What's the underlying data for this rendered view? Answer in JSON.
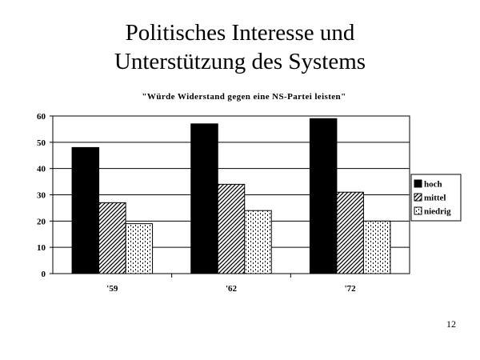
{
  "slide": {
    "title_line1": "Politisches Interesse und",
    "title_line2": "Unterstützung des Systems",
    "page_number": "12"
  },
  "chart_data": {
    "type": "bar",
    "title": "\"Würde Widerstand gegen eine NS-Partei leisten\"",
    "categories": [
      "'59",
      "'62",
      "'72"
    ],
    "series": [
      {
        "name": "hoch",
        "values": [
          48,
          57,
          59
        ],
        "pattern": "solid-black"
      },
      {
        "name": "mittel",
        "values": [
          27,
          34,
          31
        ],
        "pattern": "diagonal-hatch"
      },
      {
        "name": "niedrig",
        "values": [
          19,
          24,
          20
        ],
        "pattern": "dotted"
      }
    ],
    "ylim": [
      0,
      60
    ],
    "yticks": [
      0,
      10,
      20,
      30,
      40,
      50,
      60
    ],
    "grid": true,
    "legend_position": "right",
    "xlabel": "",
    "ylabel": ""
  }
}
